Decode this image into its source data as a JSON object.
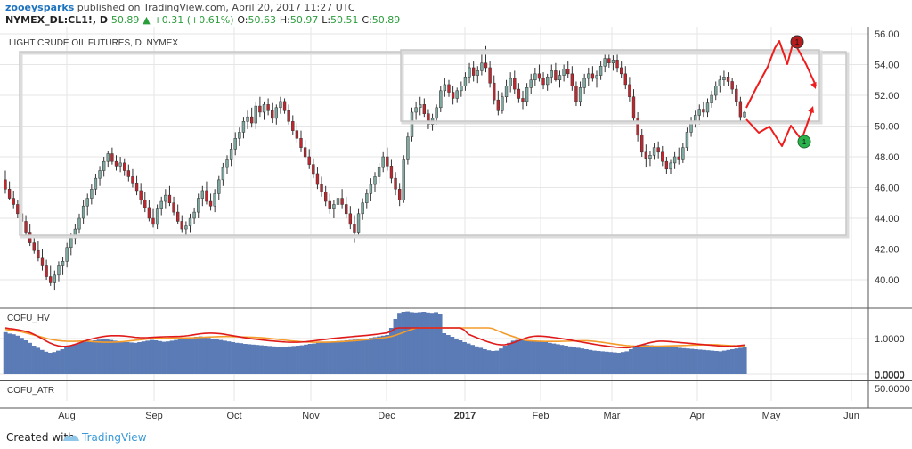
{
  "header": {
    "user": "zooeysparks",
    "published": "published on TradingView.com, April 20, 2017 11:27 UTC",
    "symbol": "NYMEX_DL:CL1!, D",
    "price": "50.89",
    "change": "+0.31 (+0.61%)",
    "o_label": "O:",
    "o_value": "50.63",
    "h_label": "H:",
    "h_value": "50.97",
    "l_label": "L:",
    "l_value": "50.51",
    "c_label": "C:",
    "c_value": "50.89"
  },
  "footer": {
    "created_with": "Created with",
    "brand": "TradingView"
  },
  "colors": {
    "up": "#7fa8a0",
    "down": "#c0262d",
    "hv_bar": "#5a7bb5",
    "hv_line_red": "#e01a1a",
    "hv_line_orange": "#f39c2b",
    "annotation": "#ee1c1c",
    "grid": "#e6e6e6"
  },
  "chart_data": [
    {
      "type": "candlestick",
      "title": "LIGHT CRUDE OIL FUTURES, D, NYMEX",
      "y_axis_side": "right",
      "ylim": [
        38.6,
        56.6
      ],
      "yticks": [
        "56.00",
        "54.00",
        "52.00",
        "50.00",
        "48.00",
        "46.00",
        "44.00",
        "42.00",
        "40.00"
      ],
      "x_tick_labels": [
        "Aug",
        "Sep",
        "Oct",
        "Nov",
        "Dec",
        "2017",
        "Feb",
        "Mar",
        "Apr",
        "May",
        "Jun"
      ],
      "grid": true,
      "ohlc": [
        [
          46.5,
          47.1,
          45.6,
          45.9
        ],
        [
          45.9,
          46.4,
          45.2,
          45.3
        ],
        [
          45.3,
          45.8,
          44.6,
          44.9
        ],
        [
          44.9,
          45.2,
          44.0,
          44.3
        ],
        [
          44.3,
          44.9,
          43.5,
          43.8
        ],
        [
          43.8,
          44.2,
          42.9,
          43.1
        ],
        [
          43.1,
          43.6,
          42.2,
          42.4
        ],
        [
          42.4,
          42.9,
          41.7,
          41.9
        ],
        [
          41.9,
          42.5,
          41.2,
          41.4
        ],
        [
          41.4,
          42.0,
          40.6,
          40.9
        ],
        [
          40.9,
          41.3,
          40.0,
          40.2
        ],
        [
          40.2,
          40.9,
          39.6,
          39.8
        ],
        [
          39.8,
          40.6,
          39.3,
          40.3
        ],
        [
          40.3,
          41.2,
          39.9,
          40.9
        ],
        [
          40.9,
          41.5,
          40.3,
          41.2
        ],
        [
          41.2,
          42.4,
          40.8,
          42.1
        ],
        [
          42.1,
          43.0,
          41.6,
          42.7
        ],
        [
          42.7,
          43.6,
          42.3,
          43.3
        ],
        [
          43.3,
          44.3,
          43.0,
          44.0
        ],
        [
          44.0,
          45.2,
          43.6,
          44.8
        ],
        [
          44.8,
          45.6,
          44.2,
          45.3
        ],
        [
          45.3,
          46.2,
          44.9,
          45.9
        ],
        [
          45.9,
          46.9,
          45.5,
          46.6
        ],
        [
          46.6,
          47.4,
          46.1,
          47.1
        ],
        [
          47.1,
          48.0,
          46.7,
          47.7
        ],
        [
          47.7,
          48.4,
          47.3,
          48.2
        ],
        [
          48.2,
          48.6,
          47.5,
          47.7
        ],
        [
          47.7,
          48.1,
          47.1,
          47.4
        ],
        [
          47.4,
          48.0,
          47.0,
          47.6
        ],
        [
          47.6,
          47.9,
          46.8,
          47.1
        ],
        [
          47.1,
          47.5,
          46.4,
          46.7
        ],
        [
          46.7,
          47.2,
          46.0,
          46.3
        ],
        [
          46.3,
          46.8,
          45.5,
          45.8
        ],
        [
          45.8,
          46.3,
          44.9,
          45.2
        ],
        [
          45.2,
          45.7,
          44.4,
          44.7
        ],
        [
          44.7,
          45.2,
          43.8,
          44.0
        ],
        [
          44.0,
          44.6,
          43.4,
          43.6
        ],
        [
          43.6,
          44.9,
          43.3,
          44.6
        ],
        [
          44.6,
          45.4,
          44.2,
          45.1
        ],
        [
          45.1,
          45.9,
          44.6,
          45.5
        ],
        [
          45.5,
          46.1,
          44.8,
          45.0
        ],
        [
          45.0,
          45.4,
          44.2,
          44.4
        ],
        [
          44.4,
          44.9,
          43.6,
          43.8
        ],
        [
          43.8,
          44.2,
          43.1,
          43.3
        ],
        [
          43.3,
          43.8,
          42.9,
          43.5
        ],
        [
          43.5,
          44.3,
          43.1,
          44.0
        ],
        [
          44.0,
          44.7,
          43.6,
          44.4
        ],
        [
          44.4,
          45.6,
          44.0,
          45.3
        ],
        [
          45.3,
          46.1,
          44.8,
          45.8
        ],
        [
          45.8,
          46.4,
          44.9,
          45.1
        ],
        [
          45.1,
          45.6,
          44.5,
          44.8
        ],
        [
          44.8,
          45.9,
          44.4,
          45.6
        ],
        [
          45.6,
          46.8,
          45.2,
          46.5
        ],
        [
          46.5,
          47.6,
          46.1,
          47.3
        ],
        [
          47.3,
          48.1,
          46.9,
          47.8
        ],
        [
          47.8,
          48.9,
          47.4,
          48.5
        ],
        [
          48.5,
          49.6,
          48.1,
          49.2
        ],
        [
          49.2,
          49.9,
          48.7,
          49.6
        ],
        [
          49.6,
          50.6,
          49.2,
          50.3
        ],
        [
          50.3,
          51.0,
          49.8,
          50.6
        ],
        [
          50.6,
          51.2,
          49.9,
          50.2
        ],
        [
          50.2,
          51.6,
          49.8,
          51.3
        ],
        [
          51.3,
          51.9,
          50.6,
          50.9
        ],
        [
          50.9,
          51.6,
          50.4,
          51.4
        ],
        [
          51.4,
          51.8,
          50.7,
          51.0
        ],
        [
          51.0,
          51.5,
          50.2,
          50.5
        ],
        [
          50.5,
          51.4,
          50.1,
          51.2
        ],
        [
          51.2,
          51.9,
          50.8,
          51.6
        ],
        [
          51.6,
          51.8,
          50.8,
          51.0
        ],
        [
          51.0,
          51.4,
          50.1,
          50.3
        ],
        [
          50.3,
          50.7,
          49.4,
          49.7
        ],
        [
          49.7,
          50.2,
          48.9,
          49.2
        ],
        [
          49.2,
          49.7,
          48.3,
          48.6
        ],
        [
          48.6,
          49.1,
          47.8,
          48.0
        ],
        [
          48.0,
          48.5,
          47.2,
          47.5
        ],
        [
          47.5,
          47.9,
          46.6,
          46.9
        ],
        [
          46.9,
          47.3,
          45.9,
          46.2
        ],
        [
          46.2,
          46.7,
          45.4,
          45.7
        ],
        [
          45.7,
          46.1,
          44.8,
          45.1
        ],
        [
          45.1,
          45.6,
          44.3,
          44.6
        ],
        [
          44.6,
          45.2,
          44.0,
          44.9
        ],
        [
          44.9,
          45.6,
          44.4,
          45.3
        ],
        [
          45.3,
          45.9,
          44.6,
          44.9
        ],
        [
          44.9,
          45.4,
          44.0,
          44.3
        ],
        [
          44.3,
          44.8,
          43.3,
          43.6
        ],
        [
          43.6,
          44.2,
          42.4,
          43.1
        ],
        [
          43.1,
          44.6,
          42.9,
          44.3
        ],
        [
          44.3,
          45.3,
          43.9,
          45.0
        ],
        [
          45.0,
          45.9,
          44.6,
          45.6
        ],
        [
          45.6,
          46.6,
          45.1,
          46.2
        ],
        [
          46.2,
          47.0,
          45.7,
          46.7
        ],
        [
          46.7,
          47.6,
          46.3,
          47.3
        ],
        [
          47.3,
          48.3,
          47.0,
          48.0
        ],
        [
          48.0,
          48.6,
          47.1,
          47.4
        ],
        [
          47.4,
          47.8,
          46.3,
          46.6
        ],
        [
          46.6,
          47.0,
          45.5,
          45.9
        ],
        [
          45.9,
          46.3,
          44.8,
          45.2
        ],
        [
          45.2,
          48.1,
          45.0,
          47.8
        ],
        [
          47.8,
          49.6,
          47.5,
          49.3
        ],
        [
          49.3,
          51.2,
          49.0,
          50.9
        ],
        [
          50.9,
          51.6,
          50.4,
          51.2
        ],
        [
          51.2,
          51.9,
          50.7,
          51.4
        ],
        [
          51.4,
          51.8,
          50.6,
          50.8
        ],
        [
          50.8,
          51.1,
          49.8,
          50.1
        ],
        [
          50.1,
          50.8,
          49.7,
          50.5
        ],
        [
          50.5,
          51.4,
          50.1,
          51.2
        ],
        [
          51.2,
          52.6,
          50.9,
          52.3
        ],
        [
          52.3,
          53.1,
          51.9,
          52.7
        ],
        [
          52.7,
          53.0,
          51.9,
          52.2
        ],
        [
          52.2,
          52.6,
          51.4,
          51.8
        ],
        [
          51.8,
          52.5,
          51.5,
          52.3
        ],
        [
          52.3,
          52.9,
          51.9,
          52.6
        ],
        [
          52.6,
          53.5,
          52.3,
          53.2
        ],
        [
          53.2,
          54.1,
          52.8,
          53.8
        ],
        [
          53.8,
          54.2,
          52.9,
          53.3
        ],
        [
          53.3,
          53.9,
          52.8,
          53.6
        ],
        [
          53.6,
          54.8,
          53.3,
          54.1
        ],
        [
          54.1,
          55.2,
          53.5,
          53.8
        ],
        [
          53.8,
          54.2,
          52.5,
          52.8
        ],
        [
          52.8,
          53.3,
          51.4,
          51.7
        ],
        [
          51.7,
          52.3,
          50.7,
          51.0
        ],
        [
          51.0,
          52.2,
          50.8,
          51.9
        ],
        [
          51.9,
          53.0,
          51.5,
          52.6
        ],
        [
          52.6,
          53.5,
          52.2,
          53.1
        ],
        [
          53.1,
          53.6,
          52.1,
          52.4
        ],
        [
          52.4,
          52.8,
          51.5,
          51.8
        ],
        [
          51.8,
          52.3,
          51.1,
          51.6
        ],
        [
          51.6,
          52.8,
          51.3,
          52.5
        ],
        [
          52.5,
          53.4,
          52.1,
          53.0
        ],
        [
          53.0,
          53.8,
          52.6,
          53.4
        ],
        [
          53.4,
          54.0,
          52.9,
          53.1
        ],
        [
          53.1,
          53.5,
          52.4,
          52.7
        ],
        [
          52.7,
          53.4,
          52.3,
          53.2
        ],
        [
          53.2,
          54.0,
          52.8,
          53.6
        ],
        [
          53.6,
          54.1,
          52.9,
          53.0
        ],
        [
          53.0,
          53.6,
          52.5,
          53.3
        ],
        [
          53.3,
          54.0,
          52.9,
          53.7
        ],
        [
          53.7,
          54.2,
          53.1,
          53.4
        ],
        [
          53.4,
          53.9,
          52.3,
          52.6
        ],
        [
          52.6,
          52.9,
          51.3,
          51.6
        ],
        [
          51.6,
          52.9,
          51.3,
          52.5
        ],
        [
          52.5,
          53.4,
          52.1,
          53.1
        ],
        [
          53.1,
          53.8,
          52.6,
          53.4
        ],
        [
          53.4,
          53.9,
          52.9,
          53.1
        ],
        [
          53.1,
          53.6,
          52.5,
          53.3
        ],
        [
          53.3,
          54.2,
          53.0,
          53.9
        ],
        [
          53.9,
          54.7,
          53.5,
          54.4
        ],
        [
          54.4,
          54.9,
          53.8,
          54.1
        ],
        [
          54.1,
          54.6,
          53.6,
          54.3
        ],
        [
          54.3,
          54.7,
          53.5,
          53.8
        ],
        [
          53.8,
          54.2,
          53.1,
          53.4
        ],
        [
          53.4,
          53.9,
          52.4,
          52.7
        ],
        [
          52.7,
          53.2,
          51.6,
          51.9
        ],
        [
          51.9,
          52.4,
          50.2,
          50.5
        ],
        [
          50.5,
          50.9,
          49.0,
          49.4
        ],
        [
          49.4,
          49.8,
          48.0,
          48.3
        ],
        [
          48.3,
          48.8,
          47.3,
          47.9
        ],
        [
          47.9,
          48.4,
          47.4,
          48.1
        ],
        [
          48.1,
          48.9,
          47.8,
          48.6
        ],
        [
          48.6,
          49.0,
          47.9,
          48.3
        ],
        [
          48.3,
          48.7,
          47.4,
          47.7
        ],
        [
          47.7,
          48.0,
          46.9,
          47.2
        ],
        [
          47.2,
          47.8,
          46.9,
          47.6
        ],
        [
          47.6,
          48.3,
          47.2,
          48.0
        ],
        [
          48.0,
          48.6,
          47.5,
          47.8
        ],
        [
          47.8,
          48.9,
          47.6,
          48.6
        ],
        [
          48.6,
          49.9,
          48.4,
          49.6
        ],
        [
          49.6,
          50.6,
          49.3,
          50.3
        ],
        [
          50.3,
          51.0,
          49.9,
          50.7
        ],
        [
          50.7,
          51.4,
          50.1,
          51.1
        ],
        [
          51.1,
          51.6,
          50.6,
          50.9
        ],
        [
          50.9,
          51.8,
          50.6,
          51.5
        ],
        [
          51.5,
          52.3,
          51.2,
          52.0
        ],
        [
          52.0,
          52.9,
          51.7,
          52.6
        ],
        [
          52.6,
          53.3,
          52.2,
          53.0
        ],
        [
          53.0,
          53.6,
          52.6,
          53.2
        ],
        [
          53.2,
          53.5,
          52.6,
          52.9
        ],
        [
          52.9,
          53.1,
          52.1,
          52.4
        ],
        [
          52.4,
          52.7,
          51.3,
          51.6
        ],
        [
          51.6,
          51.9,
          50.3,
          50.6
        ],
        [
          50.6,
          50.97,
          50.51,
          50.89
        ]
      ]
    },
    {
      "type": "bar",
      "title": "COFU_HV",
      "ylim": [
        0,
        1.8
      ],
      "yticks": [
        "1.0000",
        "0.0000"
      ],
      "values": [
        1.18,
        1.14,
        1.12,
        1.08,
        1.02,
        0.95,
        0.88,
        0.8,
        0.74,
        0.68,
        0.63,
        0.6,
        0.62,
        0.66,
        0.7,
        0.75,
        0.8,
        0.84,
        0.88,
        0.9,
        0.92,
        0.94,
        0.95,
        0.97,
        0.98,
        0.99,
        0.96,
        0.94,
        0.92,
        0.91,
        0.9,
        0.89,
        0.88,
        0.9,
        0.92,
        0.94,
        0.96,
        0.95,
        0.93,
        0.91,
        0.92,
        0.94,
        0.96,
        0.98,
        1.0,
        1.02,
        1.03,
        1.05,
        1.06,
        1.04,
        1.02,
        1.0,
        0.98,
        0.96,
        0.94,
        0.92,
        0.9,
        0.88,
        0.87,
        0.85,
        0.84,
        0.83,
        0.82,
        0.81,
        0.8,
        0.79,
        0.78,
        0.77,
        0.76,
        0.77,
        0.78,
        0.79,
        0.8,
        0.81,
        0.83,
        0.85,
        0.86,
        0.88,
        0.89,
        0.9,
        0.91,
        0.92,
        0.93,
        0.94,
        0.95,
        0.96,
        0.97,
        0.98,
        0.99,
        1.0,
        1.02,
        1.04,
        1.06,
        1.08,
        1.1,
        1.3,
        1.55,
        1.72,
        1.75,
        1.76,
        1.74,
        1.73,
        1.74,
        1.75,
        1.73,
        1.72,
        1.74,
        1.7,
        1.15,
        1.1,
        1.05,
        1.0,
        0.95,
        0.9,
        0.86,
        0.82,
        0.78,
        0.74,
        0.7,
        0.67,
        0.65,
        0.66,
        0.72,
        0.8,
        0.88,
        0.94,
        0.96,
        0.97,
        0.96,
        0.95,
        0.94,
        0.93,
        0.92,
        0.9,
        0.88,
        0.86,
        0.84,
        0.82,
        0.8,
        0.78,
        0.76,
        0.74,
        0.72,
        0.7,
        0.68,
        0.66,
        0.65,
        0.64,
        0.63,
        0.62,
        0.61,
        0.6,
        0.62,
        0.64,
        0.7,
        0.78,
        0.82,
        0.83,
        0.82,
        0.81,
        0.8,
        0.79,
        0.78,
        0.77,
        0.76,
        0.75,
        0.74,
        0.73,
        0.72,
        0.71,
        0.7,
        0.69,
        0.68,
        0.67,
        0.66,
        0.65,
        0.64,
        0.66,
        0.68,
        0.7,
        0.72,
        0.74,
        0.75
      ]
    }
  ],
  "atr_panel": {
    "title": "COFU_ATR",
    "yticks": [
      "50.0000",
      "0.0000"
    ]
  }
}
